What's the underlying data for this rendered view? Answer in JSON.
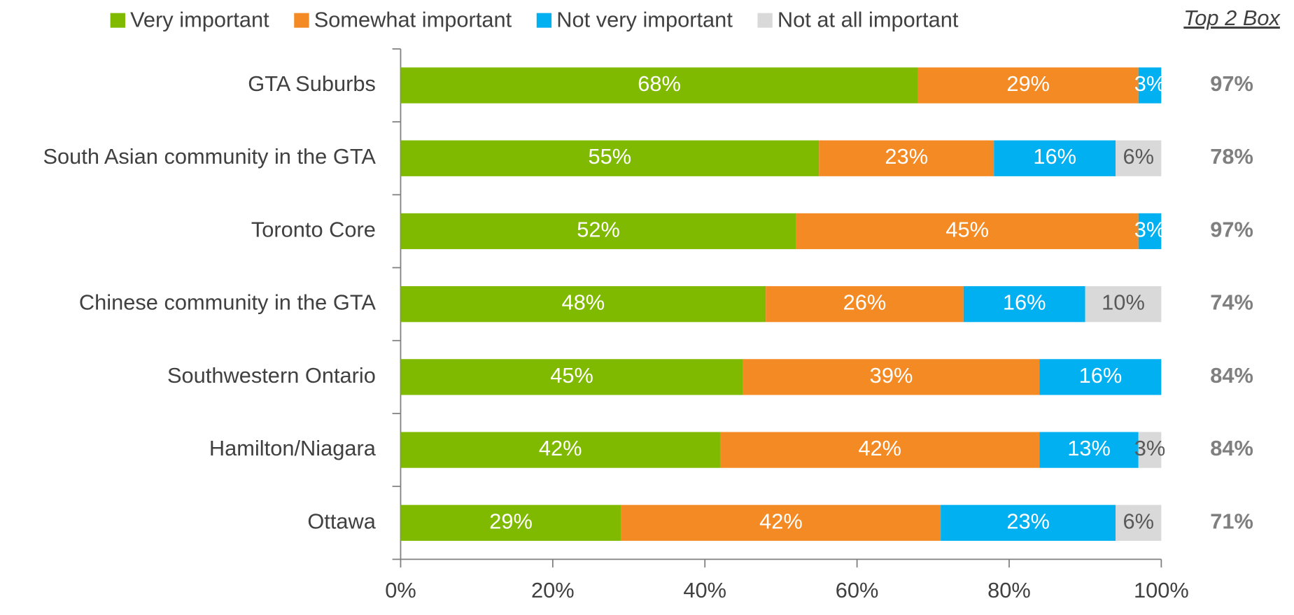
{
  "chart_data": {
    "type": "stacked_barh",
    "categories": [
      "GTA Suburbs",
      "South Asian community in the GTA",
      "Toronto Core",
      "Chinese community in the GTA",
      "Southwestern Ontario",
      "Hamilton/Niagara",
      "Ottawa"
    ],
    "series": [
      {
        "name": "Very important",
        "color": "#7fba00",
        "label_color": "#ffffff",
        "values": [
          68,
          55,
          52,
          48,
          45,
          42,
          29
        ],
        "value_labels": [
          "68%",
          "55%",
          "52%",
          "48%",
          "45%",
          "42%",
          "29%"
        ]
      },
      {
        "name": "Somewhat important",
        "color": "#f48a24",
        "label_color": "#ffffff",
        "values": [
          29,
          23,
          45,
          26,
          39,
          42,
          42
        ],
        "value_labels": [
          "29%",
          "23%",
          "45%",
          "26%",
          "39%",
          "42%",
          "42%"
        ]
      },
      {
        "name": "Not very important",
        "color": "#00b0f0",
        "label_color": "#ffffff",
        "values": [
          3,
          16,
          3,
          16,
          16,
          13,
          23
        ],
        "value_labels": [
          "3%",
          "16%",
          "3%",
          "16%",
          "16%",
          "13%",
          "23%"
        ]
      },
      {
        "name": "Not at all important",
        "color": "#d9d9d9",
        "label_color": "#595959",
        "values": [
          null,
          6,
          null,
          10,
          null,
          3,
          6
        ],
        "value_labels": [
          null,
          "6%",
          null,
          "10%",
          null,
          "3%",
          "6%"
        ]
      }
    ],
    "xlim": [
      0,
      100
    ],
    "xticks": [
      {
        "value": 0,
        "label": "0%"
      },
      {
        "value": 20,
        "label": "20%"
      },
      {
        "value": 40,
        "label": "40%"
      },
      {
        "value": 60,
        "label": "60%"
      },
      {
        "value": 80,
        "label": "80%"
      },
      {
        "value": 100,
        "label": "100%"
      }
    ],
    "top2_title": "Top 2 Box",
    "top2_values": [
      97,
      78,
      97,
      74,
      84,
      84,
      71
    ],
    "top2_labels": [
      "97%",
      "78%",
      "97%",
      "74%",
      "84%",
      "84%",
      "71%"
    ],
    "legend": "top"
  }
}
